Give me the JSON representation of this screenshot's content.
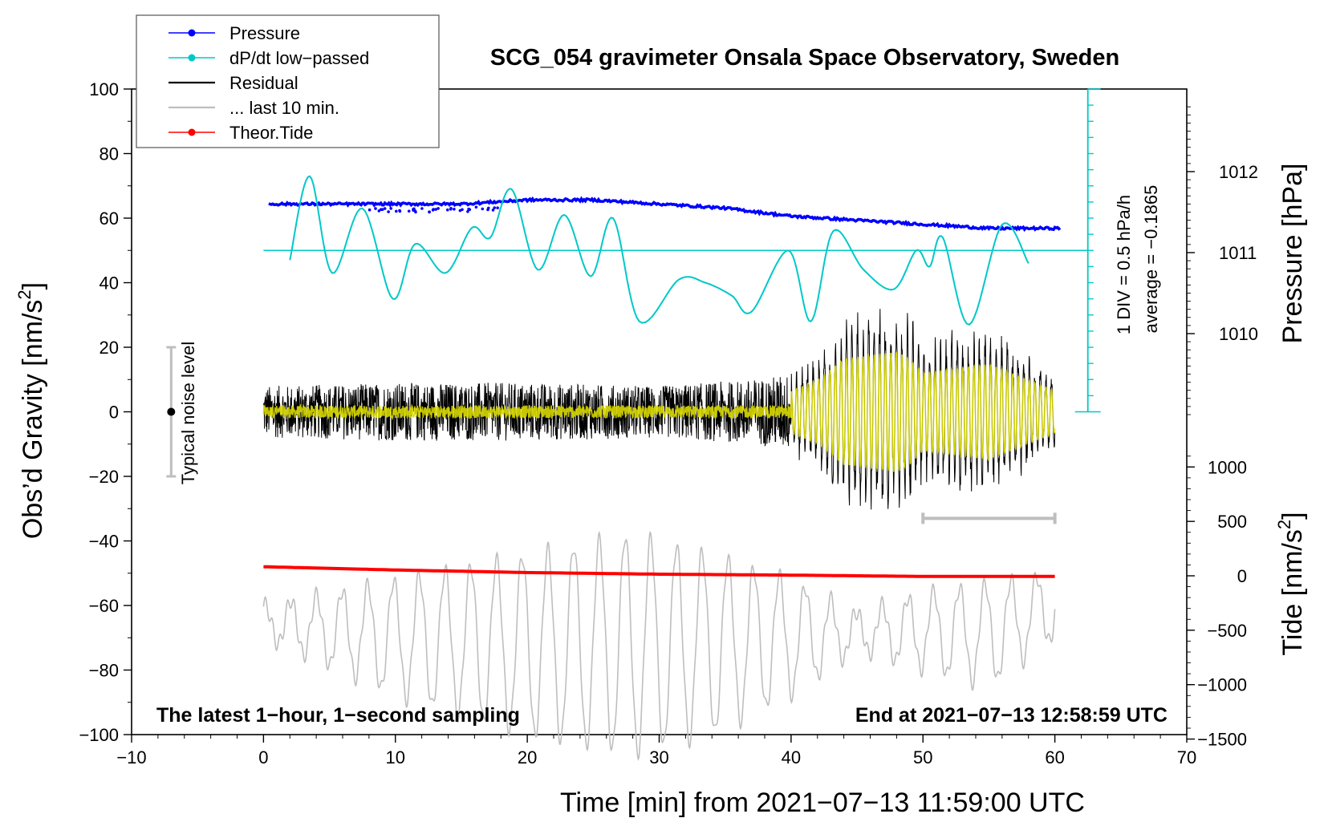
{
  "chart_data": {
    "type": "line",
    "title": "SCG_054 gravimeter Onsala Space Observatory, Sweden",
    "xlabel": "Time [min] from 2021−07−13 11:59:00 UTC",
    "ylabel": "Obs’d Gravity [nm/s",
    "ylabel_sup": "2",
    "ylabel_end": "]",
    "y2label_pressure": "Pressure [hPa]",
    "y2label_tide": "Tide [nm/s",
    "y2label_tide_sup": "2",
    "y2label_tide_end": "]",
    "xlim": [
      -10,
      70
    ],
    "ylim": [
      -100,
      100
    ],
    "x_ticks": [
      -10,
      0,
      10,
      20,
      30,
      40,
      50,
      60,
      70
    ],
    "x_tick_labels": [
      "−10",
      "0",
      "10",
      "20",
      "30",
      "40",
      "50",
      "60",
      "70"
    ],
    "y_ticks": [
      -100,
      -80,
      -60,
      -40,
      -20,
      0,
      20,
      40,
      60,
      80,
      100
    ],
    "y_tick_labels": [
      "−100",
      "−80",
      "−60",
      "−40",
      "−20",
      "0",
      "20",
      "40",
      "60",
      "80",
      "100"
    ],
    "pressure_axis": {
      "ticks": [
        1010,
        1011,
        1012
      ],
      "labels": [
        "1010",
        "1011",
        "1012"
      ],
      "range_hpa": [
        1009,
        1013
      ]
    },
    "tide_axis": {
      "ticks": [
        -1500,
        -1000,
        -500,
        0,
        500,
        1000
      ],
      "labels": [
        "−1500",
        "−1000",
        "−500",
        "0",
        "500",
        "1000"
      ]
    },
    "dpdt_scale_text": "1 DIV = 0.5 hPa/h",
    "dpdt_average_text": "average = −0.1865",
    "noise_label": "Typical noise level",
    "noise_range": [
      -20,
      20
    ],
    "bottom_left_text": "The latest 1−hour, 1−second sampling",
    "bottom_right_text": "End at 2021−07−13 12:58:59 UTC",
    "legend": [
      {
        "label": "Pressure",
        "color": "#0000ff",
        "style": "line-dot"
      },
      {
        "label": "dP/dt low−passed",
        "color": "#00c8c8",
        "style": "line-dot"
      },
      {
        "label": "Residual",
        "color": "#000000",
        "style": "line"
      },
      {
        "label": "... last 10 min.",
        "color": "#bebebe",
        "style": "line"
      },
      {
        "label": "Theor.Tide",
        "color": "#ff0000",
        "style": "line-dot"
      }
    ],
    "series": [
      {
        "name": "Pressure",
        "units": "hPa",
        "x": [
          0,
          5,
          10,
          15,
          20,
          25,
          30,
          35,
          40,
          45,
          50,
          55,
          60
        ],
        "values": [
          1011.6,
          1011.6,
          1011.6,
          1011.6,
          1011.65,
          1011.65,
          1011.6,
          1011.55,
          1011.45,
          1011.4,
          1011.35,
          1011.3,
          1011.3
        ]
      },
      {
        "name": "dP/dt low-passed",
        "units": "nm/s2 plot scale",
        "x": [
          2.0,
          3.5,
          5.2,
          7.5,
          9.8,
          11.5,
          13.8,
          15.8,
          17.2,
          18.8,
          20.8,
          22.8,
          24.8,
          26.5,
          28.5,
          31.5,
          33.5,
          35.5,
          37.0,
          39.8,
          41.5,
          43.2,
          45.5,
          47.8,
          49.5,
          50.5,
          51.5,
          53.5,
          56.0,
          58.0
        ],
        "values": [
          47,
          73,
          43,
          63,
          35,
          52,
          43,
          57,
          54,
          69,
          44,
          61,
          42,
          60,
          28,
          41,
          40,
          36,
          31,
          50,
          28,
          56,
          44,
          38,
          50,
          45,
          54,
          27,
          58,
          46
        ]
      },
      {
        "name": "Residual envelope",
        "units": "nm/s2",
        "x": [
          0,
          10,
          20,
          30,
          37,
          40,
          42,
          44,
          46,
          48,
          49,
          50,
          52,
          55,
          58,
          60
        ],
        "values": [
          8,
          9,
          9,
          8,
          10,
          12,
          18,
          30,
          32,
          34,
          30,
          22,
          24,
          27,
          18,
          12
        ]
      },
      {
        "name": "Theor.Tide",
        "units": "nm/s2",
        "x": [
          0,
          10,
          20,
          30,
          40,
          50,
          60
        ],
        "values": [
          -48,
          -49,
          -49.8,
          -50.3,
          -50.6,
          -51,
          -51
        ]
      },
      {
        "name": "... last 10 min.",
        "units": "nm/s2",
        "x": [
          0,
          10,
          20,
          28,
          34,
          40,
          45,
          50,
          55,
          60
        ],
        "values": [
          -65,
          -70,
          -72,
          -72,
          -72,
          -70,
          -68,
          -68,
          -69,
          -60
        ],
        "amplitude": [
          5,
          18,
          28,
          34,
          28,
          18,
          6,
          12,
          16,
          10
        ]
      }
    ]
  }
}
